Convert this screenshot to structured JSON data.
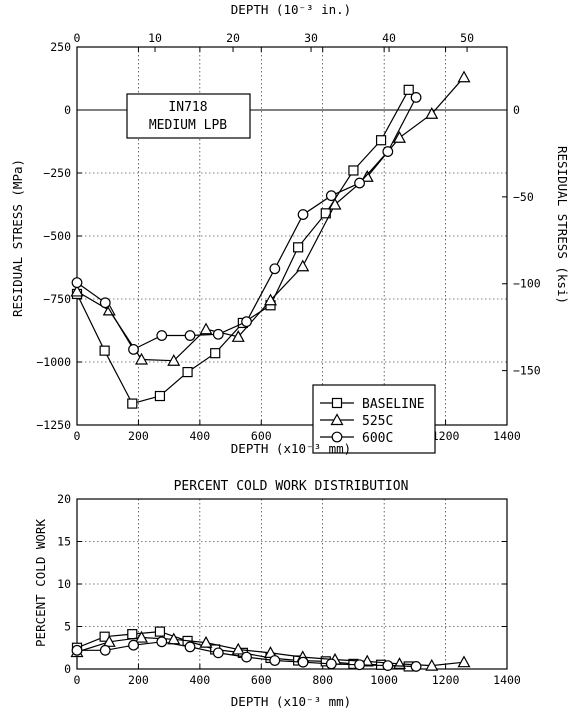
{
  "chart_data": [
    {
      "type": "line",
      "title": "",
      "annotation": [
        "IN718",
        "MEDIUM LPB"
      ],
      "xlabel": "DEPTH (x10⁻³ mm)",
      "ylabel": "RESIDUAL STRESS (MPa)",
      "top_xlabel": "DEPTH (10⁻³ in.)",
      "right_ylabel": "RESIDUAL STRESS (ksi)",
      "xlim": [
        0,
        1400
      ],
      "ylim": [
        -1250,
        250
      ],
      "xticks": [
        0,
        200,
        400,
        600,
        800,
        1000,
        1200,
        1400
      ],
      "yticks": [
        250,
        0,
        -250,
        -500,
        -750,
        -1000,
        -1250
      ],
      "top_xticks": [
        0,
        10,
        20,
        30,
        40,
        50
      ],
      "right_yticks": [
        0,
        -50,
        -100,
        -150
      ],
      "grid": true,
      "legend_position": "lower-right",
      "series": [
        {
          "name": "BASELINE",
          "marker": "square",
          "x": [
            0,
            90,
            180,
            270,
            360,
            450,
            540,
            630,
            720,
            810,
            900,
            990,
            1080
          ],
          "y": [
            -730,
            -955,
            -1165,
            -1135,
            -1040,
            -965,
            -845,
            -775,
            -545,
            -410,
            -240,
            -120,
            80
          ]
        },
        {
          "name": "525C",
          "marker": "triangle",
          "x": [
            0,
            105,
            210,
            315,
            420,
            525,
            630,
            735,
            840,
            945,
            1050,
            1155,
            1260
          ],
          "y": [
            -720,
            -795,
            -990,
            -995,
            -870,
            -900,
            -755,
            -620,
            -375,
            -265,
            -110,
            -15,
            130
          ]
        },
        {
          "name": "600C",
          "marker": "circle",
          "x": [
            0,
            92,
            184,
            276,
            368,
            460,
            552,
            644,
            736,
            828,
            920,
            1012,
            1104
          ],
          "y": [
            -685,
            -765,
            -950,
            -895,
            -895,
            -890,
            -840,
            -630,
            -415,
            -340,
            -290,
            -165,
            50
          ]
        }
      ]
    },
    {
      "type": "line",
      "title": "PERCENT COLD WORK DISTRIBUTION",
      "xlabel": "DEPTH (x10⁻³ mm)",
      "ylabel": "PERCENT COLD WORK",
      "xlim": [
        0,
        1400
      ],
      "ylim": [
        0,
        20
      ],
      "xticks": [
        0,
        200,
        400,
        600,
        800,
        1000,
        1200,
        1400
      ],
      "yticks": [
        0,
        5,
        10,
        15,
        20
      ],
      "grid": true,
      "series": [
        {
          "name": "BASELINE",
          "marker": "square",
          "x": [
            0,
            90,
            180,
            270,
            360,
            450,
            540,
            630,
            720,
            810,
            900,
            990,
            1080
          ],
          "y": [
            2.5,
            3.8,
            4.1,
            4.4,
            3.3,
            2.3,
            1.9,
            1.3,
            1.0,
            0.9,
            0.6,
            0.5,
            0.3
          ]
        },
        {
          "name": "525C",
          "marker": "triangle",
          "x": [
            0,
            105,
            210,
            315,
            420,
            525,
            630,
            735,
            840,
            945,
            1050,
            1155,
            1260
          ],
          "y": [
            2.0,
            3.2,
            3.7,
            3.5,
            3.1,
            2.3,
            1.9,
            1.4,
            1.1,
            0.9,
            0.6,
            0.4,
            0.8
          ]
        },
        {
          "name": "600C",
          "marker": "circle",
          "x": [
            0,
            92,
            184,
            276,
            368,
            460,
            552,
            644,
            736,
            828,
            920,
            1012,
            1104
          ],
          "y": [
            2.2,
            2.2,
            2.8,
            3.2,
            2.6,
            1.9,
            1.4,
            1.0,
            0.8,
            0.6,
            0.5,
            0.4,
            0.3
          ]
        }
      ]
    }
  ]
}
